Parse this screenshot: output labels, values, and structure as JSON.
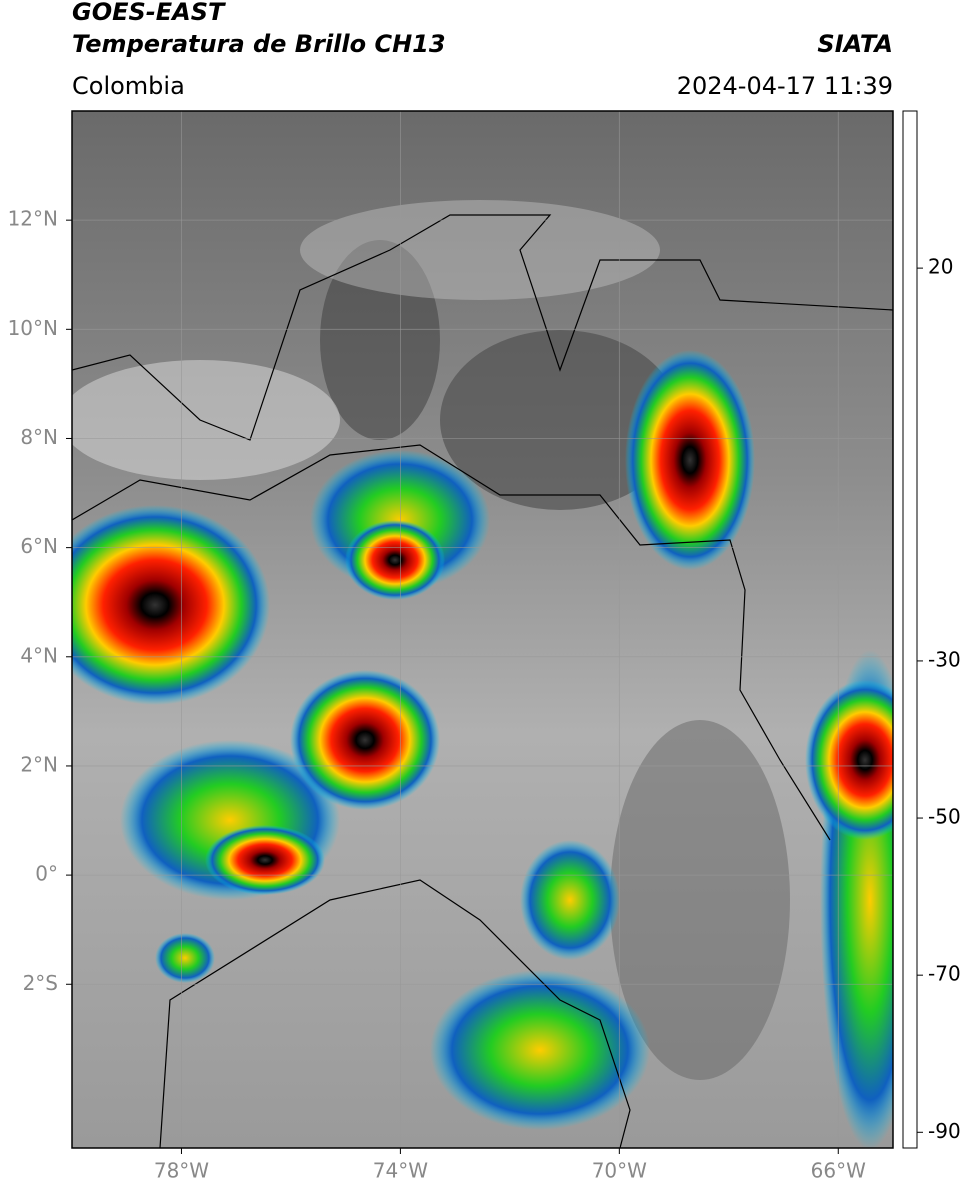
{
  "header": {
    "title": "GOES-EAST",
    "subtitle": "Temperatura de Brillo CH13",
    "source": "SIATA",
    "region": "Colombia",
    "timestamp": "2024-04-17 11:39"
  },
  "map": {
    "xlim": [
      -80,
      -65
    ],
    "ylim": [
      -5,
      14
    ],
    "xticks": [
      {
        "value": -78,
        "label": "78°W"
      },
      {
        "value": -74,
        "label": "74°W"
      },
      {
        "value": -70,
        "label": "70°W"
      },
      {
        "value": -66,
        "label": "66°W"
      }
    ],
    "yticks": [
      {
        "value": 12,
        "label": "12°N"
      },
      {
        "value": 10,
        "label": "10°N"
      },
      {
        "value": 8,
        "label": "8°N"
      },
      {
        "value": 6,
        "label": "6°N"
      },
      {
        "value": 4,
        "label": "4°N"
      },
      {
        "value": 2,
        "label": "2°N"
      },
      {
        "value": 0,
        "label": "0°"
      },
      {
        "value": -2,
        "label": "2°S"
      }
    ],
    "grid": true
  },
  "colorbar": {
    "lim": [
      -92,
      40
    ],
    "ticks": [
      -90,
      -70,
      -50,
      -30,
      20
    ],
    "stops": [
      {
        "value": -92,
        "color": "#ffffff"
      },
      {
        "value": -90,
        "color": "#ffffff"
      },
      {
        "value": -90,
        "color": "#8a1a8a"
      },
      {
        "value": -80,
        "color": "#ff80e0"
      },
      {
        "value": -80,
        "color": "#d0c4c4"
      },
      {
        "value": -72,
        "color": "#555555"
      },
      {
        "value": -70,
        "color": "#000000"
      },
      {
        "value": -65,
        "color": "#a00000"
      },
      {
        "value": -60,
        "color": "#ff2000"
      },
      {
        "value": -52,
        "color": "#ff9900"
      },
      {
        "value": -48,
        "color": "#ffee00"
      },
      {
        "value": -40,
        "color": "#22dd22"
      },
      {
        "value": -35,
        "color": "#006633"
      },
      {
        "value": -30,
        "color": "#0a1a80"
      },
      {
        "value": -27,
        "color": "#1060c0"
      },
      {
        "value": -25,
        "color": "#00c8f0"
      },
      {
        "value": -25,
        "color": "#ffffff"
      },
      {
        "value": 20,
        "color": "#777777"
      },
      {
        "value": 40,
        "color": "#000000"
      }
    ]
  }
}
